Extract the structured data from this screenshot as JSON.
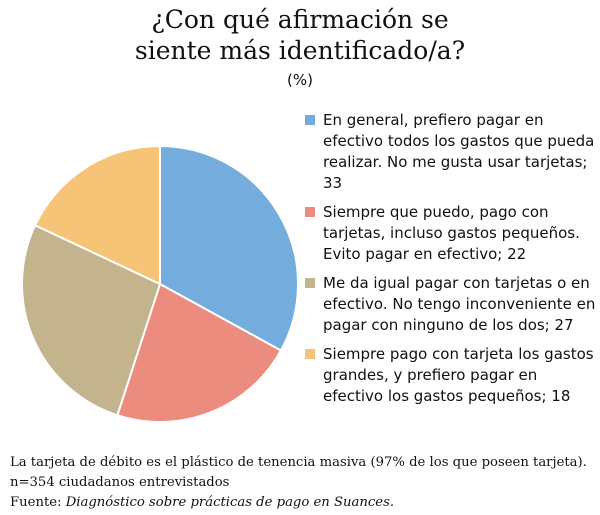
{
  "chart_data": {
    "type": "pie",
    "title": "¿Con qué afirmación se siente más identificado/a?",
    "subtitle": "(%)",
    "slices": [
      {
        "label": "En general, prefiero pagar en efectivo todos los gastos que pueda realizar. No me gusta usar tarjetas; 33",
        "value": 33,
        "color": "#74ADDD"
      },
      {
        "label": "Siempre que puedo, pago con tarjetas, incluso gastos pequeños. Evito pagar en efectivo; 22",
        "value": 22,
        "color": "#EC8C7F"
      },
      {
        "label": "Me da igual pagar con tarjetas o en efectivo. No tengo inconveniente en pagar con ninguno de los dos; 27",
        "value": 27,
        "color": "#C4B48E"
      },
      {
        "label": "Siempre pago con tarjeta los gastos grandes, y prefiero pagar en efectivo los gastos pequeños; 18",
        "value": 18,
        "color": "#F6C377"
      }
    ]
  },
  "footer": {
    "note": "La tarjeta de débito es el plástico de tenencia masiva (97% de los que poseen tarjeta).",
    "sample": "n=354 ciudadanos entrevistados",
    "source_prefix": "Fuente: ",
    "source_title": "Diagnóstico sobre prácticas de pago en Suances."
  }
}
